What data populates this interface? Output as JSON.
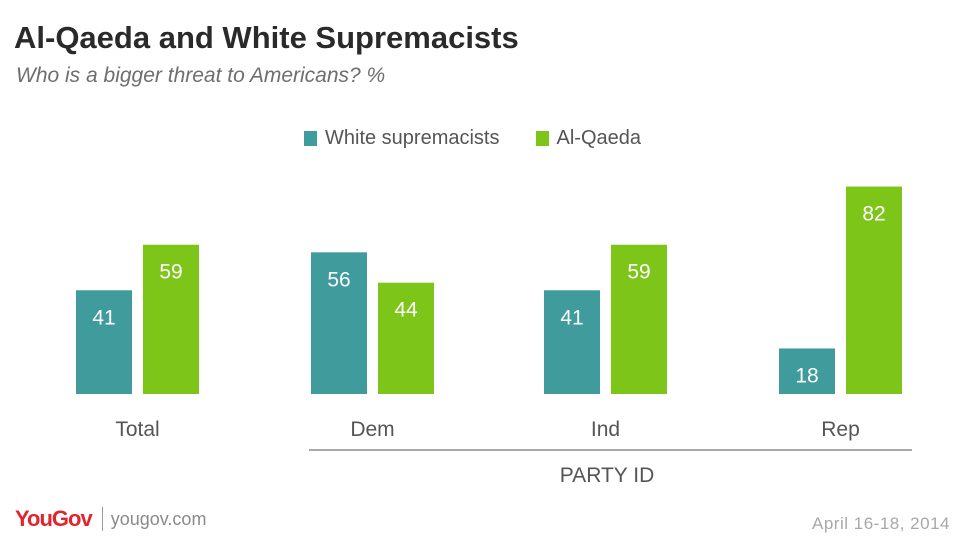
{
  "chart_data": {
    "type": "bar",
    "title": "Al-Qaeda and White Supremacists",
    "subtitle": "Who is a bigger threat to Americans? %",
    "categories": [
      "Total",
      "Dem",
      "Ind",
      "Rep"
    ],
    "series": [
      {
        "name": "White supremacists",
        "color": "#3f9b9c",
        "values": [
          41,
          56,
          41,
          18
        ]
      },
      {
        "name": "Al-Qaeda",
        "color": "#7dc519",
        "values": [
          59,
          44,
          59,
          82
        ]
      }
    ],
    "group_label": "PARTY ID",
    "ylim": [
      0,
      100
    ],
    "grid": false,
    "legend_position": "top-center"
  },
  "footer": {
    "logo": "YouGov",
    "site": "yougov.com",
    "date": "April 16-18, 2014"
  }
}
